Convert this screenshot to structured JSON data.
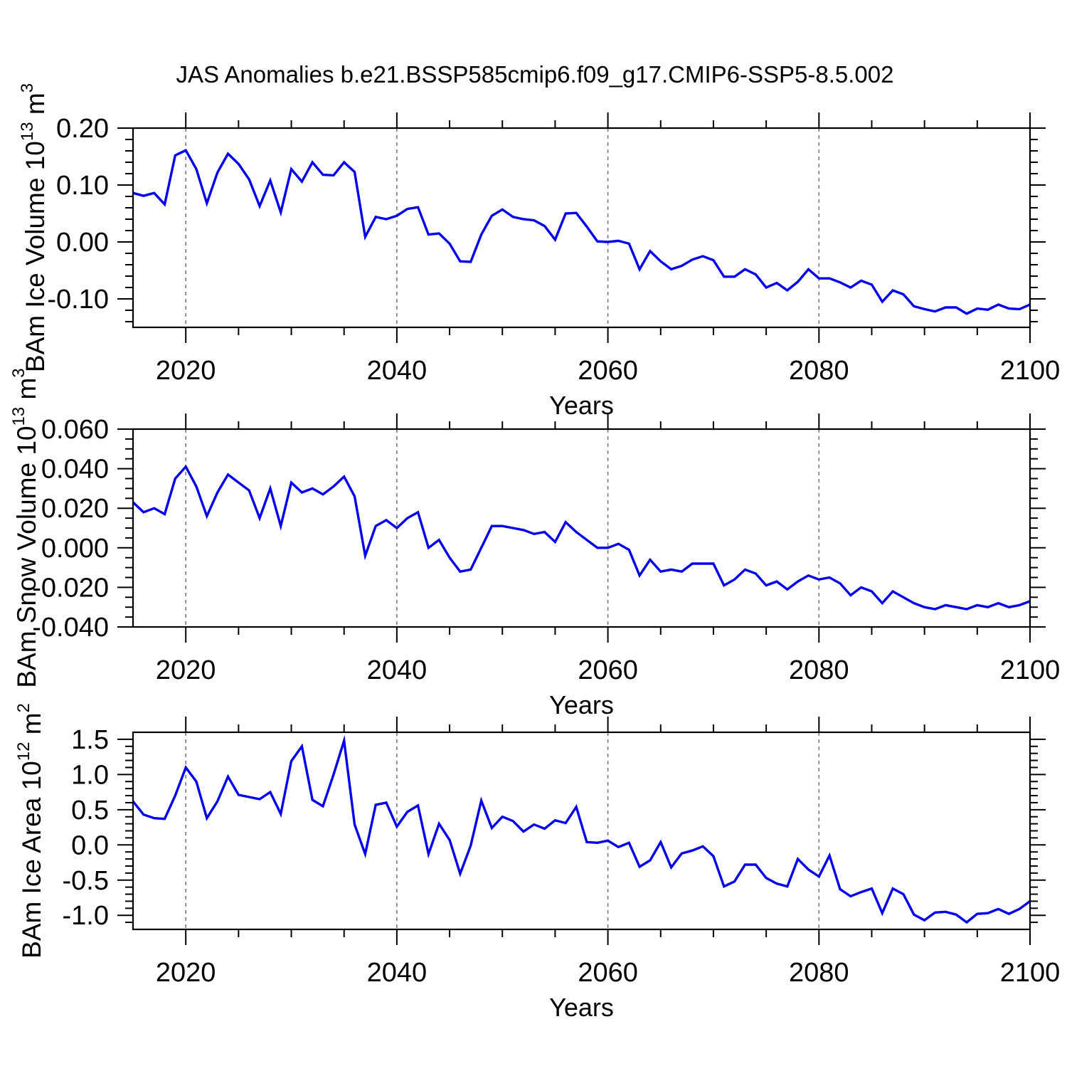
{
  "title": "JAS Anomalies b.e21.BSSP585cmip6.f09_g17.CMIP6-SSP5-8.5.002",
  "colors": {
    "line": "#0000EE",
    "grid": "#7a7a7a",
    "axis": "#000000",
    "background": "#ffffff"
  },
  "chart_data": {
    "type": "line",
    "title": "JAS Anomalies b.e21.BSSP585cmip6.f09_g17.CMIP6-SSP5-8.5.002",
    "xlabel": "Years",
    "xlim": [
      2015,
      2100
    ],
    "xticks": [
      "2020",
      "2040",
      "2060",
      "2080",
      "2100"
    ],
    "xtick_vals": [
      2020,
      2040,
      2060,
      2080,
      2100
    ],
    "xminor_step": 5,
    "grid_vlines": [
      2020,
      2040,
      2060,
      2080
    ],
    "grid_style": "dashed-vertical",
    "legend": "none",
    "years": [
      2015,
      2016,
      2017,
      2018,
      2019,
      2020,
      2021,
      2022,
      2023,
      2024,
      2025,
      2026,
      2027,
      2028,
      2029,
      2030,
      2031,
      2032,
      2033,
      2034,
      2035,
      2036,
      2037,
      2038,
      2039,
      2040,
      2041,
      2042,
      2043,
      2044,
      2045,
      2046,
      2047,
      2048,
      2049,
      2050,
      2051,
      2052,
      2053,
      2054,
      2055,
      2056,
      2057,
      2058,
      2059,
      2060,
      2061,
      2062,
      2063,
      2064,
      2065,
      2066,
      2067,
      2068,
      2069,
      2070,
      2071,
      2072,
      2073,
      2074,
      2075,
      2076,
      2077,
      2078,
      2079,
      2080,
      2081,
      2082,
      2083,
      2084,
      2085,
      2086,
      2087,
      2088,
      2089,
      2090,
      2091,
      2092,
      2093,
      2094,
      2095,
      2096,
      2097,
      2098,
      2099,
      2100
    ],
    "panels": [
      {
        "name": "ice-volume",
        "ylabel_prefix": "BAm Ice Volume 10",
        "ylabel_exp": "13",
        "ylabel_unit": " m",
        "ylabel_unit_exp": "3",
        "ylim": [
          -0.15,
          0.2
        ],
        "yticks": [
          "0.20",
          "0.10",
          "0.00",
          "-0.10"
        ],
        "ytick_vals": [
          0.2,
          0.1,
          0.0,
          -0.1
        ],
        "yminor_step": 0.02,
        "values": [
          0.086,
          0.081,
          0.086,
          0.066,
          0.152,
          0.161,
          0.128,
          0.068,
          0.122,
          0.155,
          0.137,
          0.11,
          0.063,
          0.108,
          0.052,
          0.128,
          0.106,
          0.14,
          0.118,
          0.117,
          0.14,
          0.123,
          0.009,
          0.044,
          0.04,
          0.046,
          0.058,
          0.061,
          0.013,
          0.015,
          -0.003,
          -0.034,
          -0.035,
          0.013,
          0.046,
          0.057,
          0.044,
          0.04,
          0.038,
          0.028,
          0.004,
          0.05,
          0.051,
          0.027,
          0.001,
          0.0,
          0.002,
          -0.003,
          -0.048,
          -0.016,
          -0.034,
          -0.048,
          -0.042,
          -0.031,
          -0.025,
          -0.032,
          -0.061,
          -0.061,
          -0.048,
          -0.057,
          -0.08,
          -0.072,
          -0.085,
          -0.07,
          -0.048,
          -0.064,
          -0.064,
          -0.071,
          -0.08,
          -0.068,
          -0.075,
          -0.105,
          -0.085,
          -0.092,
          -0.113,
          -0.118,
          -0.122,
          -0.115,
          -0.115,
          -0.126,
          -0.117,
          -0.119,
          -0.11,
          -0.117,
          -0.118,
          -0.11
        ]
      },
      {
        "name": "snow-volume",
        "ylabel_prefix": "BAm Snow Volume 10",
        "ylabel_exp": "13",
        "ylabel_unit": " m",
        "ylabel_unit_exp": "3",
        "ylim": [
          -0.04,
          0.06
        ],
        "yticks": [
          "0.060",
          "0.040",
          "0.020",
          "0.000",
          "-0.020",
          "-0.040"
        ],
        "ytick_vals": [
          0.06,
          0.04,
          0.02,
          0.0,
          -0.02,
          -0.04
        ],
        "yminor_step": 0.005,
        "values": [
          0.023,
          0.018,
          0.02,
          0.017,
          0.035,
          0.041,
          0.031,
          0.016,
          0.028,
          0.037,
          0.033,
          0.029,
          0.015,
          0.03,
          0.011,
          0.033,
          0.028,
          0.03,
          0.027,
          0.031,
          0.036,
          0.026,
          -0.004,
          0.011,
          0.014,
          0.01,
          0.015,
          0.018,
          0.0,
          0.004,
          -0.005,
          -0.012,
          -0.011,
          0.0,
          0.011,
          0.011,
          0.01,
          0.009,
          0.007,
          0.008,
          0.003,
          0.013,
          0.008,
          0.004,
          0.0,
          0.0,
          0.002,
          -0.001,
          -0.014,
          -0.006,
          -0.012,
          -0.011,
          -0.012,
          -0.008,
          -0.008,
          -0.008,
          -0.019,
          -0.016,
          -0.011,
          -0.013,
          -0.019,
          -0.017,
          -0.021,
          -0.017,
          -0.014,
          -0.016,
          -0.015,
          -0.018,
          -0.024,
          -0.02,
          -0.022,
          -0.028,
          -0.022,
          -0.025,
          -0.028,
          -0.03,
          -0.031,
          -0.029,
          -0.03,
          -0.031,
          -0.029,
          -0.03,
          -0.028,
          -0.03,
          -0.029,
          -0.027
        ]
      },
      {
        "name": "ice-area",
        "ylabel_prefix": "BAm Ice Area 10",
        "ylabel_exp": "12",
        "ylabel_unit": " m",
        "ylabel_unit_exp": "2",
        "ylim": [
          -1.2,
          1.6
        ],
        "yticks": [
          "1.5",
          "1.0",
          "0.5",
          "0.0",
          "-0.5",
          "-1.0"
        ],
        "ytick_vals": [
          1.5,
          1.0,
          0.5,
          0.0,
          -0.5,
          -1.0
        ],
        "yminor_step": 0.1,
        "values": [
          0.62,
          0.43,
          0.38,
          0.37,
          0.7,
          1.1,
          0.9,
          0.38,
          0.62,
          0.97,
          0.71,
          0.68,
          0.65,
          0.75,
          0.44,
          1.19,
          1.4,
          0.64,
          0.55,
          1.0,
          1.48,
          0.29,
          -0.13,
          0.57,
          0.6,
          0.26,
          0.47,
          0.56,
          -0.13,
          0.3,
          0.07,
          -0.41,
          -0.01,
          0.63,
          0.24,
          0.4,
          0.34,
          0.19,
          0.29,
          0.23,
          0.35,
          0.31,
          0.54,
          0.04,
          0.03,
          0.06,
          -0.03,
          0.03,
          -0.31,
          -0.22,
          0.04,
          -0.32,
          -0.12,
          -0.08,
          -0.02,
          -0.16,
          -0.59,
          -0.52,
          -0.28,
          -0.28,
          -0.47,
          -0.55,
          -0.59,
          -0.2,
          -0.35,
          -0.45,
          -0.15,
          -0.63,
          -0.73,
          -0.67,
          -0.62,
          -0.97,
          -0.62,
          -0.7,
          -0.99,
          -1.07,
          -0.96,
          -0.95,
          -0.99,
          -1.1,
          -0.98,
          -0.97,
          -0.91,
          -0.98,
          -0.91,
          -0.8
        ]
      }
    ]
  }
}
